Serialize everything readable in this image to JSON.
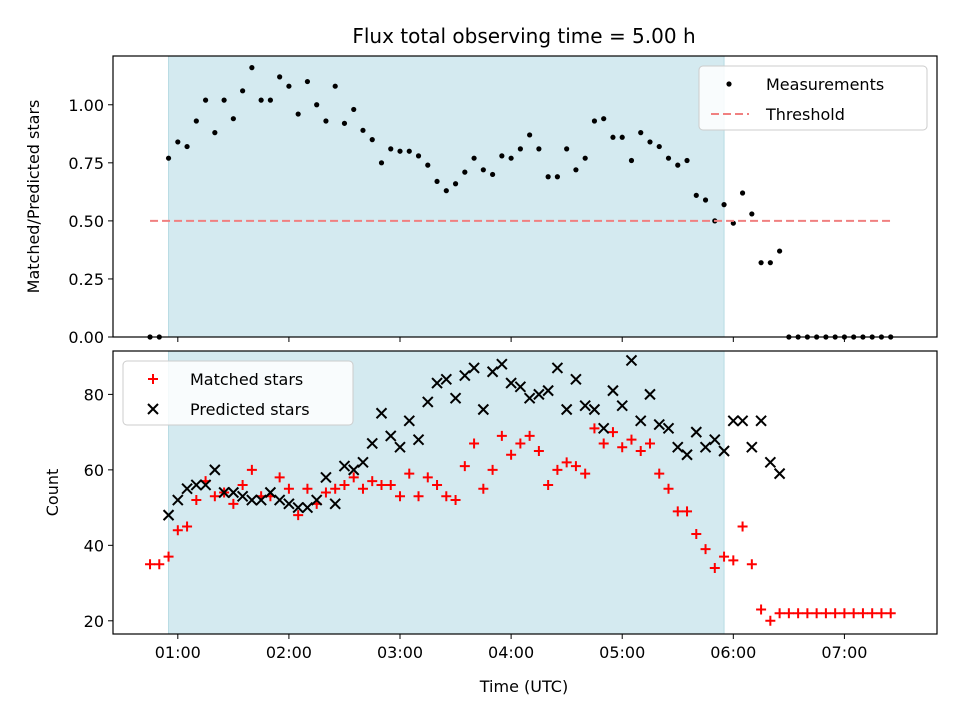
{
  "chart_data": [
    {
      "type": "scatter",
      "title": "Flux total observing time = 5.00 h",
      "xlabel": "",
      "ylabel": "Matched/Predicted stars",
      "xlim": [
        "00:25",
        "07:50"
      ],
      "ylim": [
        0,
        1.21
      ],
      "yticks": [
        0.0,
        0.25,
        0.5,
        0.75,
        1.0
      ],
      "ytick_labels": [
        "0.00",
        "0.25",
        "0.50",
        "0.75",
        "1.00"
      ],
      "shaded_interval": [
        "00:55",
        "05:55"
      ],
      "shade_color": "#d4eaf0",
      "legend_position": "upper right",
      "series": [
        {
          "name": "Measurements",
          "marker": "dot",
          "color": "#000000",
          "points": [
            [
              "00:45",
              0
            ],
            [
              "00:50",
              0
            ],
            [
              "00:55",
              0.77
            ],
            [
              "01:00",
              0.84
            ],
            [
              "01:05",
              0.82
            ],
            [
              "01:10",
              0.93
            ],
            [
              "01:15",
              1.02
            ],
            [
              "01:20",
              0.88
            ],
            [
              "01:25",
              1.02
            ],
            [
              "01:30",
              0.94
            ],
            [
              "01:35",
              1.06
            ],
            [
              "01:40",
              1.16
            ],
            [
              "01:45",
              1.02
            ],
            [
              "01:50",
              1.02
            ],
            [
              "01:55",
              1.12
            ],
            [
              "02:00",
              1.08
            ],
            [
              "02:05",
              0.96
            ],
            [
              "02:10",
              1.1
            ],
            [
              "02:15",
              1.0
            ],
            [
              "02:20",
              0.93
            ],
            [
              "02:25",
              1.08
            ],
            [
              "02:30",
              0.92
            ],
            [
              "02:35",
              0.98
            ],
            [
              "02:40",
              0.89
            ],
            [
              "02:45",
              0.85
            ],
            [
              "02:50",
              0.75
            ],
            [
              "02:55",
              0.81
            ],
            [
              "03:00",
              0.8
            ],
            [
              "03:05",
              0.8
            ],
            [
              "03:10",
              0.78
            ],
            [
              "03:15",
              0.74
            ],
            [
              "03:20",
              0.67
            ],
            [
              "03:25",
              0.63
            ],
            [
              "03:30",
              0.66
            ],
            [
              "03:35",
              0.71
            ],
            [
              "03:40",
              0.77
            ],
            [
              "03:45",
              0.72
            ],
            [
              "03:50",
              0.7
            ],
            [
              "03:55",
              0.78
            ],
            [
              "04:00",
              0.77
            ],
            [
              "04:05",
              0.81
            ],
            [
              "04:10",
              0.87
            ],
            [
              "04:15",
              0.81
            ],
            [
              "04:20",
              0.69
            ],
            [
              "04:25",
              0.69
            ],
            [
              "04:30",
              0.81
            ],
            [
              "04:35",
              0.72
            ],
            [
              "04:40",
              0.77
            ],
            [
              "04:45",
              0.93
            ],
            [
              "04:50",
              0.94
            ],
            [
              "04:55",
              0.86
            ],
            [
              "05:00",
              0.86
            ],
            [
              "05:05",
              0.76
            ],
            [
              "05:10",
              0.88
            ],
            [
              "05:15",
              0.84
            ],
            [
              "05:20",
              0.82
            ],
            [
              "05:25",
              0.77
            ],
            [
              "05:30",
              0.74
            ],
            [
              "05:35",
              0.76
            ],
            [
              "05:40",
              0.61
            ],
            [
              "05:45",
              0.59
            ],
            [
              "05:50",
              0.5
            ],
            [
              "05:55",
              0.57
            ],
            [
              "06:00",
              0.49
            ],
            [
              "06:05",
              0.62
            ],
            [
              "06:10",
              0.53
            ],
            [
              "06:15",
              0.32
            ],
            [
              "06:20",
              0.32
            ],
            [
              "06:25",
              0.37
            ],
            [
              "06:30",
              0
            ],
            [
              "06:35",
              0
            ],
            [
              "06:40",
              0
            ],
            [
              "06:45",
              0
            ],
            [
              "06:50",
              0
            ],
            [
              "06:55",
              0
            ],
            [
              "07:00",
              0
            ],
            [
              "07:05",
              0
            ],
            [
              "07:10",
              0
            ],
            [
              "07:15",
              0
            ],
            [
              "07:20",
              0
            ],
            [
              "07:25",
              0
            ]
          ]
        },
        {
          "name": "Threshold",
          "line_style": "dashed",
          "color": "#f08080",
          "points": [
            [
              "00:45",
              0.5
            ],
            [
              "07:25",
              0.5
            ]
          ]
        }
      ]
    },
    {
      "type": "scatter",
      "title": "",
      "xlabel": "Time (UTC)",
      "ylabel": "Count",
      "xlim": [
        "00:25",
        "07:50"
      ],
      "ylim": [
        16.5,
        91.5
      ],
      "yticks": [
        20,
        40,
        60,
        80
      ],
      "xticks": [
        "01:00",
        "02:00",
        "03:00",
        "04:00",
        "05:00",
        "06:00",
        "07:00"
      ],
      "shaded_interval": [
        "00:55",
        "05:55"
      ],
      "shade_color": "#d4eaf0",
      "legend_position": "upper left",
      "series": [
        {
          "name": "Matched stars",
          "marker": "plus",
          "color": "#ff0000",
          "points": [
            [
              "00:45",
              35
            ],
            [
              "00:50",
              35
            ],
            [
              "00:55",
              37
            ],
            [
              "01:00",
              44
            ],
            [
              "01:05",
              45
            ],
            [
              "01:10",
              52
            ],
            [
              "01:15",
              57
            ],
            [
              "01:20",
              53
            ],
            [
              "01:25",
              54
            ],
            [
              "01:30",
              51
            ],
            [
              "01:35",
              56
            ],
            [
              "01:40",
              60
            ],
            [
              "01:45",
              53
            ],
            [
              "01:50",
              53
            ],
            [
              "01:55",
              58
            ],
            [
              "02:00",
              55
            ],
            [
              "02:05",
              48
            ],
            [
              "02:10",
              55
            ],
            [
              "02:15",
              51
            ],
            [
              "02:20",
              54
            ],
            [
              "02:25",
              55
            ],
            [
              "02:30",
              56
            ],
            [
              "02:35",
              58
            ],
            [
              "02:40",
              55
            ],
            [
              "02:45",
              57
            ],
            [
              "02:50",
              56
            ],
            [
              "02:55",
              56
            ],
            [
              "03:00",
              53
            ],
            [
              "03:05",
              59
            ],
            [
              "03:10",
              53
            ],
            [
              "03:15",
              58
            ],
            [
              "03:20",
              56
            ],
            [
              "03:25",
              53
            ],
            [
              "03:30",
              52
            ],
            [
              "03:35",
              61
            ],
            [
              "03:40",
              67
            ],
            [
              "03:45",
              55
            ],
            [
              "03:50",
              60
            ],
            [
              "03:55",
              69
            ],
            [
              "04:00",
              64
            ],
            [
              "04:05",
              67
            ],
            [
              "04:10",
              69
            ],
            [
              "04:15",
              65
            ],
            [
              "04:20",
              56
            ],
            [
              "04:25",
              60
            ],
            [
              "04:30",
              62
            ],
            [
              "04:35",
              61
            ],
            [
              "04:40",
              59
            ],
            [
              "04:45",
              71
            ],
            [
              "04:50",
              67
            ],
            [
              "04:55",
              70
            ],
            [
              "05:00",
              66
            ],
            [
              "05:05",
              68
            ],
            [
              "05:10",
              65
            ],
            [
              "05:15",
              67
            ],
            [
              "05:20",
              59
            ],
            [
              "05:25",
              55
            ],
            [
              "05:30",
              49
            ],
            [
              "05:35",
              49
            ],
            [
              "05:40",
              43
            ],
            [
              "05:45",
              39
            ],
            [
              "05:50",
              34
            ],
            [
              "05:55",
              37
            ],
            [
              "06:00",
              36
            ],
            [
              "06:05",
              45
            ],
            [
              "06:10",
              35
            ],
            [
              "06:15",
              23
            ],
            [
              "06:20",
              20
            ],
            [
              "06:25",
              22
            ],
            [
              "06:30",
              22
            ],
            [
              "06:35",
              22
            ],
            [
              "06:40",
              22
            ],
            [
              "06:45",
              22
            ],
            [
              "06:50",
              22
            ],
            [
              "06:55",
              22
            ],
            [
              "07:00",
              22
            ],
            [
              "07:05",
              22
            ],
            [
              "07:10",
              22
            ],
            [
              "07:15",
              22
            ],
            [
              "07:20",
              22
            ],
            [
              "07:25",
              22
            ]
          ]
        },
        {
          "name": "Predicted stars",
          "marker": "x",
          "color": "#000000",
          "points": [
            [
              "00:55",
              48
            ],
            [
              "01:00",
              52
            ],
            [
              "01:05",
              55
            ],
            [
              "01:10",
              56
            ],
            [
              "01:15",
              56
            ],
            [
              "01:20",
              60
            ],
            [
              "01:25",
              54
            ],
            [
              "01:30",
              54
            ],
            [
              "01:35",
              53
            ],
            [
              "01:40",
              52
            ],
            [
              "01:45",
              52
            ],
            [
              "01:50",
              54
            ],
            [
              "01:55",
              52
            ],
            [
              "02:00",
              51
            ],
            [
              "02:05",
              50
            ],
            [
              "02:10",
              50
            ],
            [
              "02:15",
              52
            ],
            [
              "02:20",
              58
            ],
            [
              "02:25",
              51
            ],
            [
              "02:30",
              61
            ],
            [
              "02:35",
              60
            ],
            [
              "02:40",
              62
            ],
            [
              "02:45",
              67
            ],
            [
              "02:50",
              75
            ],
            [
              "02:55",
              69
            ],
            [
              "03:00",
              66
            ],
            [
              "03:05",
              73
            ],
            [
              "03:10",
              68
            ],
            [
              "03:15",
              78
            ],
            [
              "03:20",
              83
            ],
            [
              "03:25",
              84
            ],
            [
              "03:30",
              79
            ],
            [
              "03:35",
              85
            ],
            [
              "03:40",
              87
            ],
            [
              "03:45",
              76
            ],
            [
              "03:50",
              86
            ],
            [
              "03:55",
              88
            ],
            [
              "04:00",
              83
            ],
            [
              "04:05",
              82
            ],
            [
              "04:10",
              79
            ],
            [
              "04:15",
              80
            ],
            [
              "04:20",
              81
            ],
            [
              "04:25",
              87
            ],
            [
              "04:30",
              76
            ],
            [
              "04:35",
              84
            ],
            [
              "04:40",
              77
            ],
            [
              "04:45",
              76
            ],
            [
              "04:50",
              71
            ],
            [
              "04:55",
              81
            ],
            [
              "05:00",
              77
            ],
            [
              "05:05",
              89
            ],
            [
              "05:10",
              73
            ],
            [
              "05:15",
              80
            ],
            [
              "05:20",
              72
            ],
            [
              "05:25",
              71
            ],
            [
              "05:30",
              66
            ],
            [
              "05:35",
              64
            ],
            [
              "05:40",
              70
            ],
            [
              "05:45",
              66
            ],
            [
              "05:50",
              68
            ],
            [
              "05:55",
              65
            ],
            [
              "06:00",
              73
            ],
            [
              "06:05",
              73
            ],
            [
              "06:10",
              66
            ],
            [
              "06:15",
              73
            ],
            [
              "06:20",
              62
            ],
            [
              "06:25",
              59
            ]
          ]
        }
      ]
    }
  ]
}
